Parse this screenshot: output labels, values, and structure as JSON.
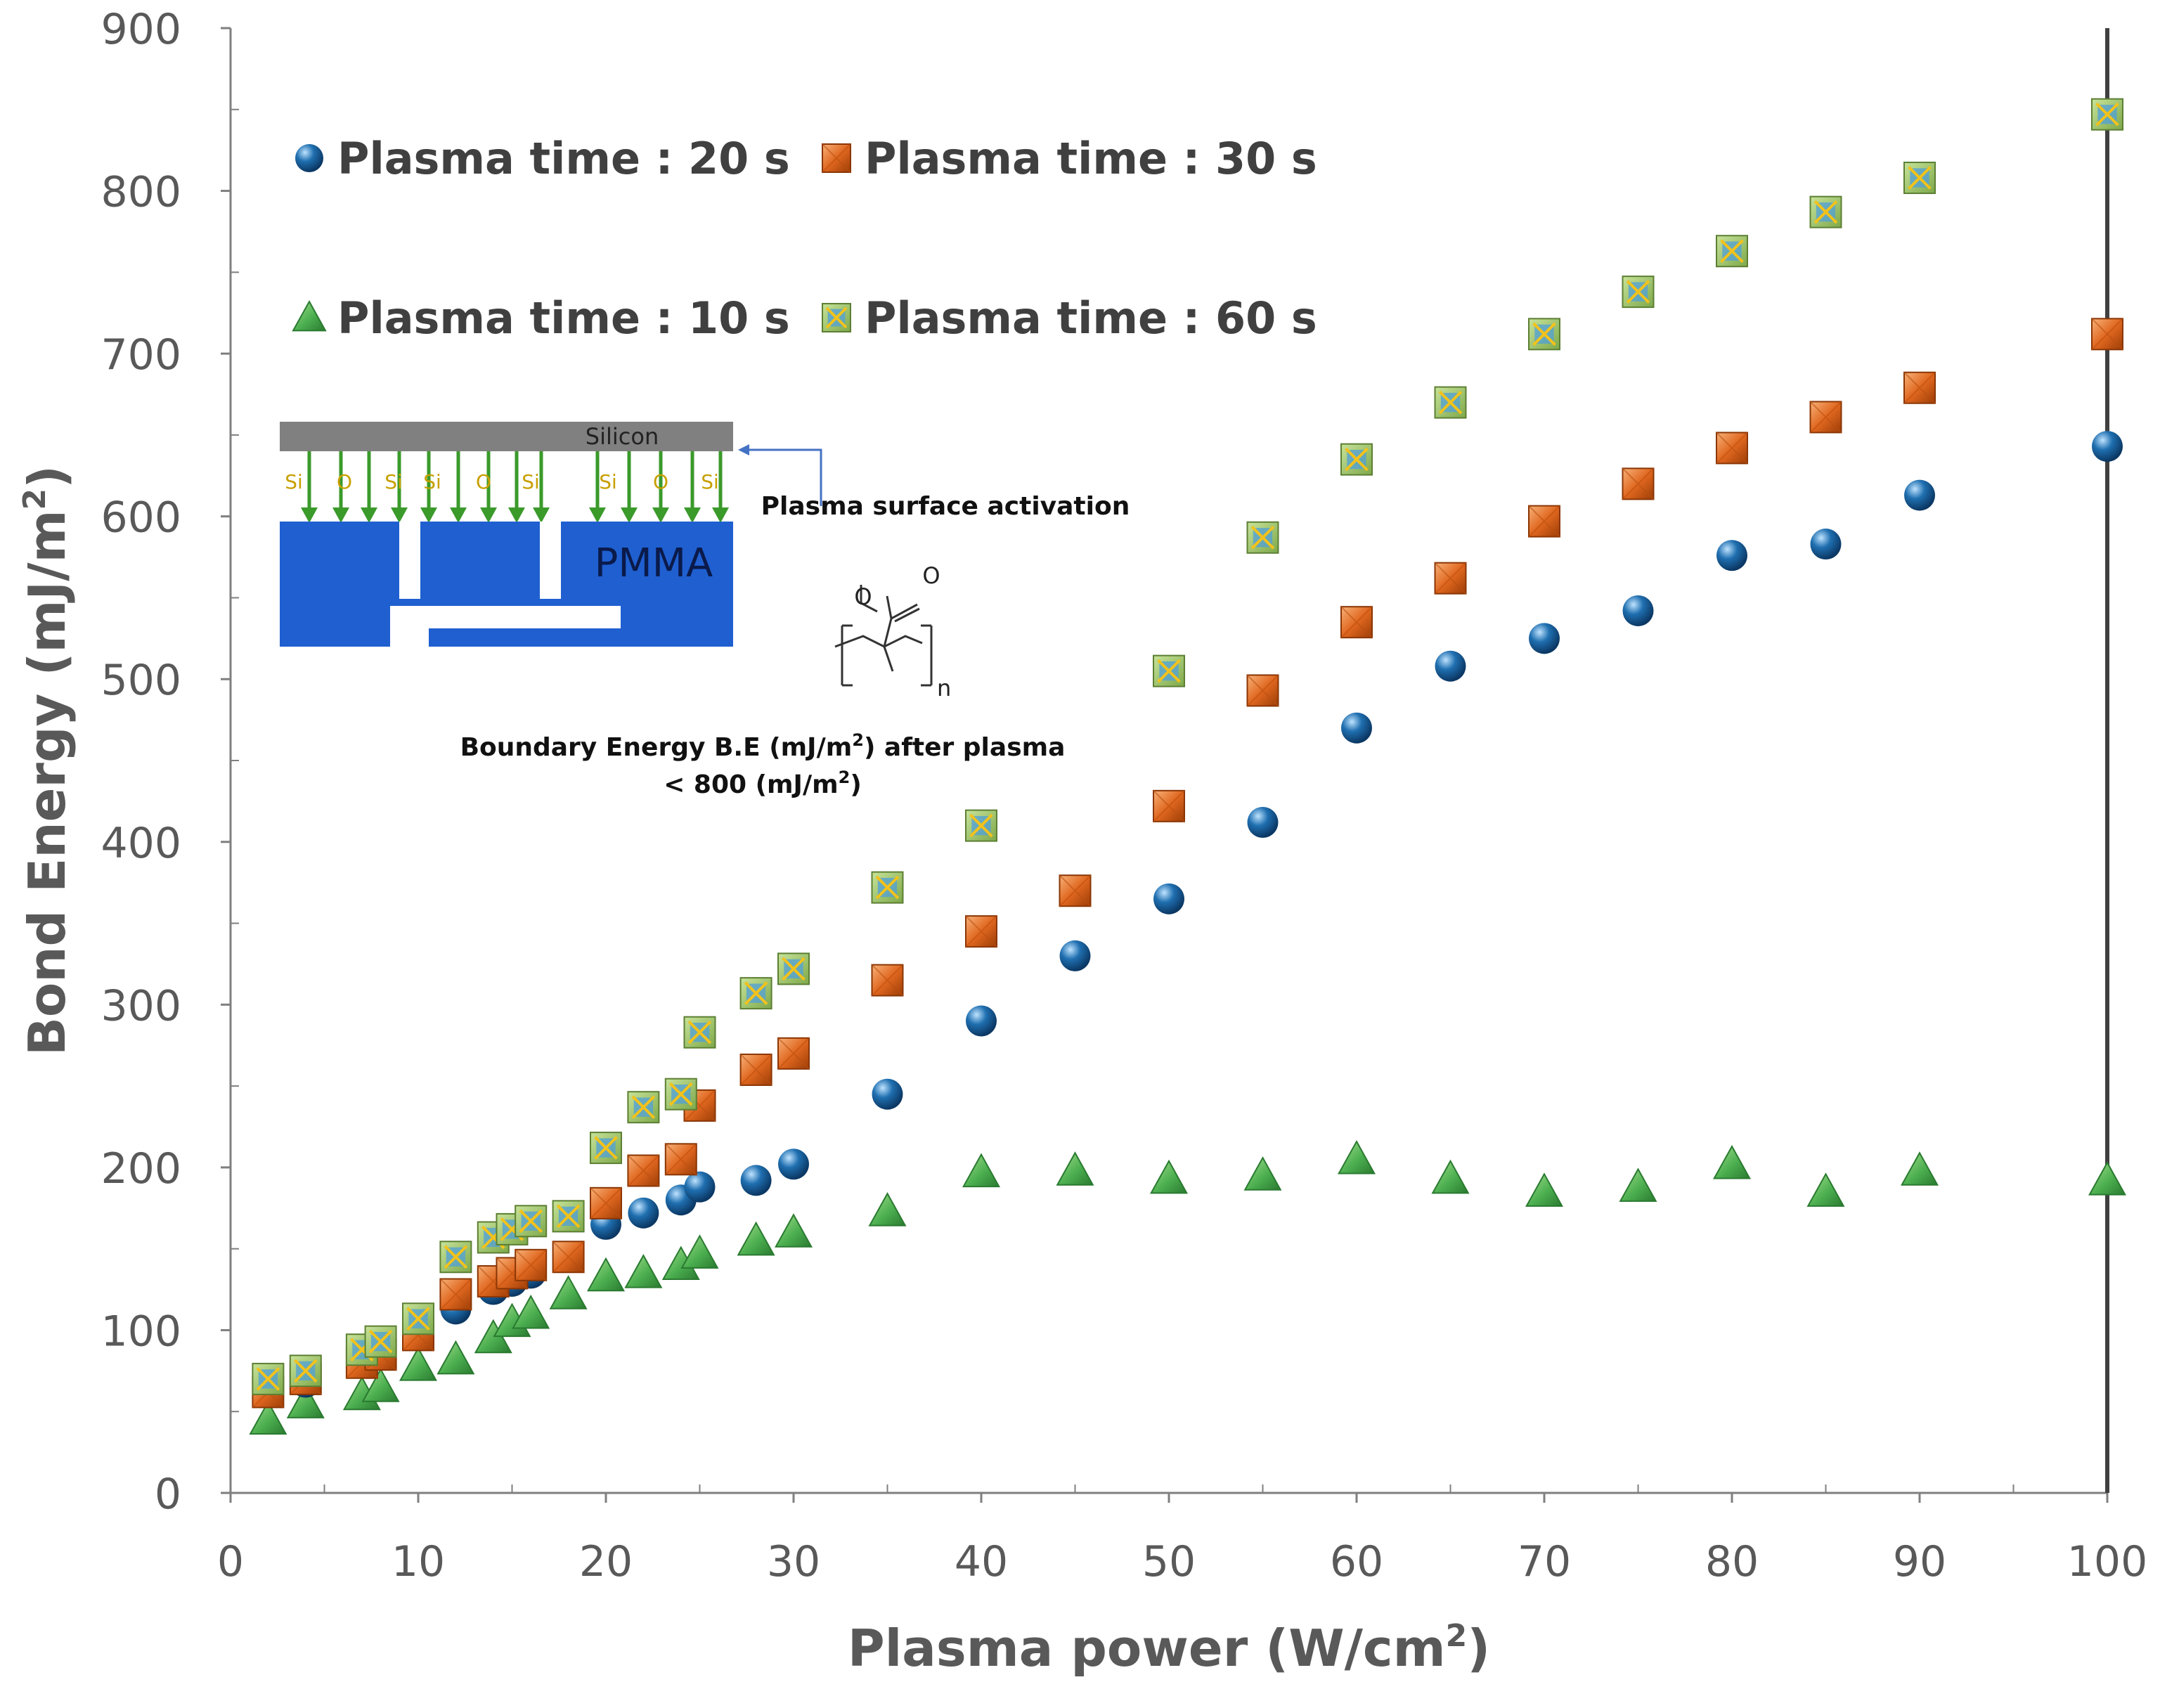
{
  "chart_data": {
    "type": "scatter",
    "xlabel_main": "Plasma power (W/cm",
    "xlabel_sup": "2",
    "xlabel_tail": ")",
    "ylabel_main": "Bond Energy (mJ/m",
    "ylabel_sup": "2",
    "ylabel_tail": ")",
    "xlim": [
      0,
      100
    ],
    "ylim": [
      0,
      900
    ],
    "x_ticks": [
      "0",
      "10",
      "20",
      "30",
      "40",
      "50",
      "60",
      "70",
      "80",
      "90",
      "100"
    ],
    "y_ticks": [
      "0",
      "100",
      "200",
      "300",
      "400",
      "500",
      "600",
      "700",
      "800",
      "900"
    ],
    "grid": false,
    "legend_position": "top-left",
    "series": [
      {
        "name": "Plasma time : 20 s",
        "marker": "sphere",
        "color": "#1f6fb0",
        "x": [
          2,
          4,
          7,
          8,
          10,
          12,
          14,
          15,
          16,
          18,
          20,
          22,
          24,
          25,
          28,
          30,
          35,
          40,
          45,
          50,
          55,
          60,
          65,
          70,
          75,
          80,
          85,
          90,
          100
        ],
        "y": [
          62,
          68,
          80,
          88,
          100,
          113,
          125,
          130,
          135,
          145,
          165,
          172,
          180,
          188,
          192,
          202,
          245,
          290,
          330,
          365,
          412,
          470,
          508,
          525,
          542,
          576,
          583,
          613,
          643
        ]
      },
      {
        "name": "Plasma time : 30 s",
        "marker": "square",
        "color": "#e0671f",
        "x": [
          2,
          4,
          7,
          8,
          10,
          12,
          14,
          15,
          16,
          18,
          20,
          22,
          24,
          25,
          28,
          30,
          35,
          40,
          45,
          50,
          55,
          60,
          65,
          70,
          75,
          80,
          85,
          90,
          100
        ],
        "y": [
          62,
          70,
          80,
          85,
          97,
          122,
          130,
          135,
          140,
          145,
          178,
          198,
          205,
          238,
          260,
          270,
          315,
          345,
          370,
          422,
          493,
          535,
          562,
          597,
          620,
          642,
          661,
          679,
          712
        ]
      },
      {
        "name": "Plasma time : 10 s",
        "marker": "triangle",
        "color": "#4caf50",
        "x": [
          2,
          4,
          7,
          8,
          10,
          12,
          14,
          15,
          16,
          18,
          20,
          22,
          24,
          25,
          28,
          30,
          35,
          40,
          45,
          50,
          55,
          60,
          65,
          70,
          75,
          80,
          85,
          90,
          100
        ],
        "y": [
          45,
          55,
          60,
          65,
          78,
          82,
          95,
          105,
          110,
          122,
          133,
          135,
          140,
          147,
          155,
          160,
          173,
          197,
          198,
          193,
          195,
          205,
          193,
          185,
          188,
          202,
          185,
          198,
          192
        ]
      },
      {
        "name": "Plasma time : 60 s",
        "marker": "square-x",
        "color": "#8fbf5a",
        "x": [
          2,
          4,
          7,
          8,
          10,
          12,
          14,
          15,
          16,
          18,
          20,
          22,
          24,
          25,
          28,
          30,
          35,
          40,
          45,
          50,
          55,
          60,
          65,
          70,
          75,
          80,
          85,
          90,
          100
        ],
        "y": [
          70,
          75,
          88,
          93,
          107,
          145,
          157,
          162,
          167,
          170,
          212,
          237,
          245,
          283,
          307,
          322,
          372,
          410,
          null,
          505,
          587,
          635,
          670,
          712,
          738,
          763,
          787,
          808,
          847
        ]
      }
    ],
    "annotations": {
      "silicon": "Silicon",
      "pmma": "PMMA",
      "plasma_activation": "Plasma surface activation",
      "bonds": [
        "Si",
        "O",
        "Si",
        "Si",
        "O",
        "Si",
        "Si",
        "O",
        "Si"
      ],
      "boundary_line1_a": "Boundary Energy B.E (mJ/m",
      "boundary_line1_sup": "2",
      "boundary_line1_b": ") after plasma",
      "boundary_line2_a": "< 800 (mJ/m",
      "boundary_line2_sup": "2",
      "boundary_line2_b": ")",
      "subscript_n": "n"
    }
  }
}
